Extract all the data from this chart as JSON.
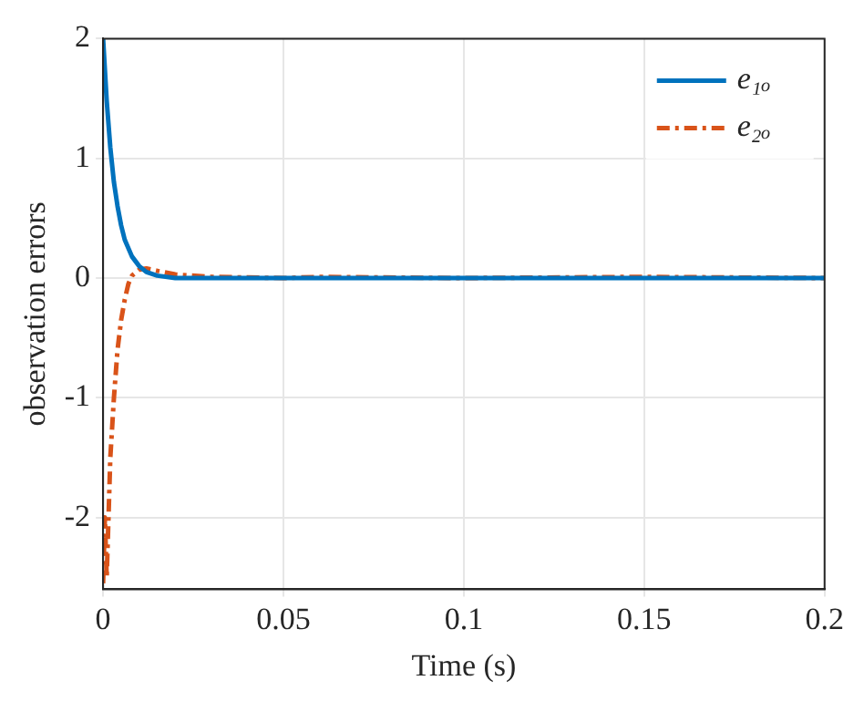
{
  "chart_data": {
    "type": "line",
    "xlabel": "Time (s)",
    "ylabel": "observation errors",
    "xlim": [
      0,
      0.2
    ],
    "xticks": [
      0,
      0.05,
      0.1,
      0.15,
      0.2
    ],
    "ylim": [
      -2.6,
      2
    ],
    "yticks": [
      -2,
      -1,
      0,
      1,
      2
    ],
    "grid": true,
    "legend": "top right",
    "marker": "none",
    "series": [
      {
        "name": "e₁ₒ",
        "color": "#0072bd",
        "line_style": "solid",
        "x": [
          0,
          0.001,
          0.002,
          0.003,
          0.004,
          0.005,
          0.006,
          0.008,
          0.01,
          0.012,
          0.015,
          0.02,
          0.03,
          0.2
        ],
        "values": [
          2,
          1.48,
          1.09,
          0.8,
          0.6,
          0.44,
          0.32,
          0.18,
          0.1,
          0.05,
          0.02,
          0,
          0,
          0
        ]
      },
      {
        "name": "e₂ₒ",
        "color": "#d95319",
        "line_style": "dashed",
        "x": [
          0,
          0.0005,
          0.001,
          0.0015,
          0.002,
          0.003,
          0.004,
          0.005,
          0.006,
          0.007,
          0.008,
          0.01,
          0.012,
          0.015,
          0.02,
          0.03,
          0.05,
          0.06,
          0.1,
          0.15,
          0.2
        ],
        "values": [
          -2.55,
          -2.0,
          -2.5,
          -2.0,
          -1.5,
          -1.0,
          -0.6,
          -0.35,
          -0.18,
          -0.05,
          0.02,
          0.07,
          0.08,
          0.06,
          0.03,
          0.01,
          0,
          0.01,
          0,
          0.01,
          0
        ]
      }
    ]
  }
}
